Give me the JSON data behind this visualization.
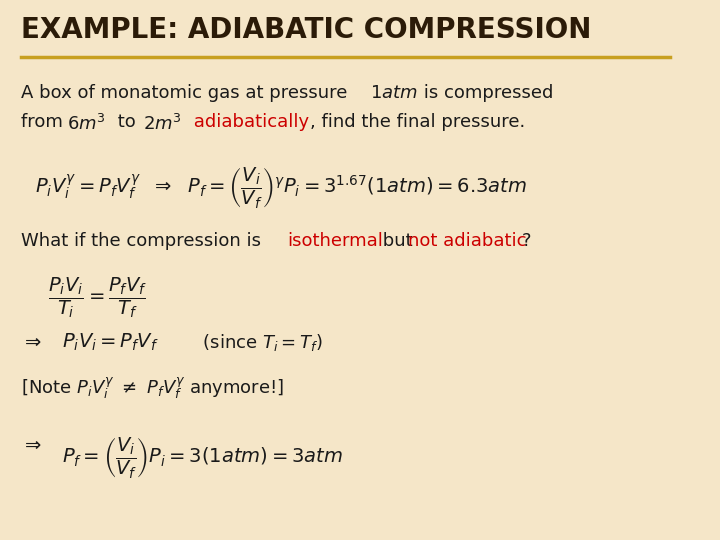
{
  "bg_color": "#F5E6C8",
  "title": "EXAMPLE: ADIABATIC COMPRESSION",
  "title_color": "#2B1B08",
  "title_underline_color": "#C8A020",
  "text_color": "#1A1A1A",
  "red_color": "#CC0000",
  "blue_color": "#0000CC",
  "line1_plain": "A box of monatomic gas at pressure ",
  "line1_italic": "1atm",
  "line1_rest": " is compressed",
  "line2_start": "from ",
  "line2_6m3": "6m",
  "line2_mid": " to ",
  "line2_2m3": "2m",
  "line2_adiabatically": "adiabatically",
  "line2_end": ", find the final pressure.",
  "eq1": "$P_iV_i^{\\gamma} = P_fV_f^{\\gamma}$  $\\Rightarrow$  $P_f = (\\dfrac{V_i}{V_f})^{\\gamma} P_i = 3^{1.67}(1atm) = 6.3atm$",
  "question": "What if the compression is ",
  "isothermal": "isothermal",
  "q_but": " but ",
  "not_adiabatic": "not adiabatic",
  "q_end": "?",
  "eq2": "$\\dfrac{P_iV_i}{T_i} = \\dfrac{P_fV_f}{T_f}$",
  "eq3_arrow": "$\\Rightarrow$",
  "eq3_main": "$P_iV_i = P_fV_f$",
  "eq3_note": " (since $T_i = T_f$)",
  "eq4": "[Note $P_iV_i^{\\gamma}$ $\\neq$ $P_fV_f^{\\gamma}$ anymore!]",
  "eq5_arrow": "$\\Rightarrow$",
  "eq5_main": "$P_f = (\\dfrac{V_i}{V_f})P_i = 3(1atm) = 3atm$"
}
